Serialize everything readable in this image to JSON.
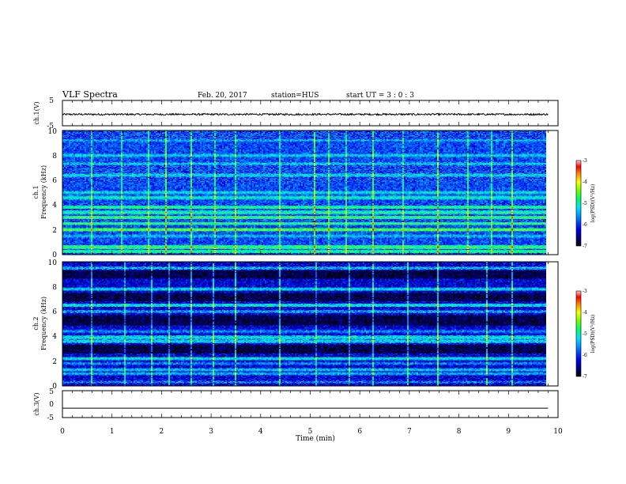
{
  "header": {
    "title": "VLF Spectra",
    "date": "Feb. 20, 2017",
    "station": "station=HUS",
    "start": "start UT =  3 : 0 : 3"
  },
  "chart_data": [
    {
      "type": "line",
      "panel": "ch1-waveform",
      "ylabel": "ch.1(V)",
      "ylim": [
        -5,
        5
      ],
      "yticks": [
        "5",
        "-5"
      ],
      "xlim": [
        0,
        10
      ],
      "series": [
        {
          "level": -0.5,
          "noise_amplitude": 0.35,
          "xmax": 9.8
        }
      ]
    },
    {
      "type": "heatmap",
      "panel": "ch1-spectrogram",
      "ylabel": [
        "ch.1",
        "Frequency (kHz)"
      ],
      "ylim": [
        0,
        10
      ],
      "yticks": [
        "0",
        "2",
        "4",
        "6",
        "8",
        "10"
      ],
      "xlim": [
        0,
        10
      ],
      "data_xmax": 9.8,
      "background_level": -5.9,
      "bands": [
        {
          "f": 0.25,
          "level": -4.7
        },
        {
          "f": 0.6,
          "level": -4.6
        },
        {
          "f": 1.5,
          "level": -5.2
        },
        {
          "f": 2.0,
          "level": -4.4
        },
        {
          "f": 2.5,
          "level": -4.6
        },
        {
          "f": 3.0,
          "level": -4.6
        },
        {
          "f": 3.4,
          "level": -4.8
        },
        {
          "f": 3.8,
          "level": -4.7
        },
        {
          "f": 4.6,
          "level": -4.9
        },
        {
          "f": 5.0,
          "level": -5.0
        },
        {
          "f": 6.4,
          "level": -5.1
        },
        {
          "f": 7.3,
          "level": -5.2
        },
        {
          "f": 8.0,
          "level": -5.1
        },
        {
          "f": 9.2,
          "level": -5.3
        }
      ],
      "bursts_min": [
        0.6,
        1.2,
        1.75,
        2.1,
        2.6,
        3.1,
        3.5,
        4.4,
        5.1,
        5.4,
        5.75,
        6.3,
        6.9,
        7.6,
        8.2,
        8.7,
        9.1
      ]
    },
    {
      "type": "heatmap",
      "panel": "ch2-spectrogram",
      "ylabel": [
        "ch.2",
        "Frequency (kHz)"
      ],
      "ylim": [
        0,
        10
      ],
      "yticks": [
        "0",
        "2",
        "4",
        "6",
        "8",
        "10"
      ],
      "xlim": [
        0,
        10
      ],
      "data_xmax": 9.8,
      "background_level": -6.3,
      "bands": [
        {
          "f": 0.3,
          "level": -5.6
        },
        {
          "f": 1.0,
          "level": -5.3
        },
        {
          "f": 1.3,
          "level": -5.2
        },
        {
          "f": 1.8,
          "level": -5.5
        },
        {
          "f": 2.2,
          "level": -5.0
        },
        {
          "f": 3.6,
          "level": -5.1
        },
        {
          "f": 3.9,
          "level": -5.0
        },
        {
          "f": 4.4,
          "level": -5.5
        },
        {
          "f": 6.0,
          "level": -5.4
        },
        {
          "f": 6.5,
          "level": -5.0
        },
        {
          "f": 7.8,
          "level": -5.1
        },
        {
          "f": 9.5,
          "level": -5.3
        }
      ],
      "dark_bands": [
        [
          2.6,
          3.3
        ],
        [
          4.9,
          5.7
        ],
        [
          6.8,
          7.5
        ],
        [
          8.6,
          9.3
        ]
      ],
      "bursts_min": [
        0.6,
        1.25,
        1.8,
        2.15,
        2.6,
        3.05,
        3.5,
        4.4,
        5.15,
        5.8,
        6.3,
        7.0,
        7.6,
        8.6,
        9.1
      ]
    },
    {
      "type": "line",
      "panel": "ch3-waveform",
      "ylabel": "ch.3(V)",
      "ylim": [
        -5,
        5
      ],
      "yticks": [
        "5",
        "0",
        "-5"
      ],
      "xlim": [
        0,
        10
      ],
      "xticks": [
        "0",
        "1",
        "2",
        "3",
        "4",
        "5",
        "6",
        "7",
        "8",
        "9",
        "10"
      ],
      "xlabel": "Time (min)",
      "series": [
        {
          "level": -1.5,
          "noise_amplitude": 0.0,
          "xmax": 9.8
        }
      ]
    }
  ],
  "colorbars": [
    {
      "label": "log(PSD)(V²/Hz)",
      "range": [
        -7,
        -3
      ],
      "ticks": [
        "-3",
        "-4",
        "-5",
        "-6",
        "-7"
      ]
    },
    {
      "label": "log(PSD)(V²/Hz)",
      "range": [
        -7,
        -3
      ],
      "ticks": [
        "-3",
        "-4",
        "-5",
        "-6",
        "-7"
      ]
    }
  ]
}
